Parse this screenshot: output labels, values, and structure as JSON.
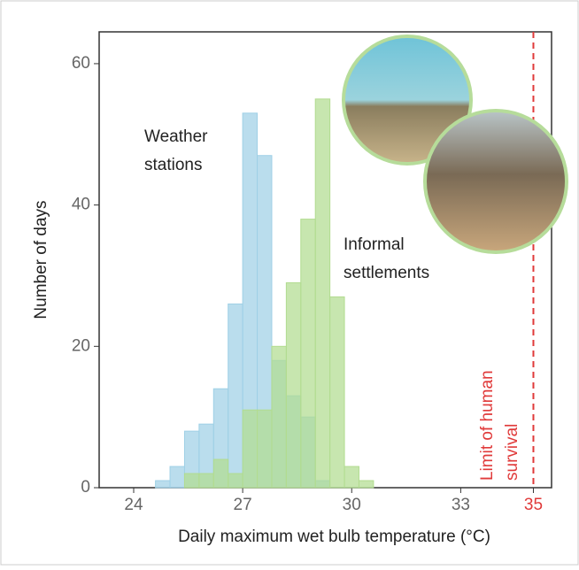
{
  "chart_data": {
    "type": "histogram",
    "xlabel": "Daily maximum wet bulb temperature (°C)",
    "ylabel": "Number of days",
    "xlim": [
      23.05,
      35.5
    ],
    "ylim": [
      0,
      64.5
    ],
    "xticks": [
      24,
      27,
      30,
      33,
      35
    ],
    "yticks": [
      0,
      20,
      40,
      60
    ],
    "series": [
      {
        "name": [
          "Weather",
          "stations"
        ],
        "color": "#9fd0e6",
        "bins": [
          24.6,
          25.0,
          25.4,
          25.8,
          26.2,
          26.6,
          27.0,
          27.4,
          27.8,
          28.2,
          28.6,
          29.0,
          29.4
        ],
        "values": [
          1,
          3,
          8,
          9,
          14,
          26,
          53,
          47,
          18,
          13,
          10,
          1
        ]
      },
      {
        "name": [
          "Informal",
          "settlements"
        ],
        "color": "#b2dc90",
        "bins": [
          25.4,
          25.8,
          26.2,
          26.6,
          27.0,
          27.4,
          27.8,
          28.2,
          28.6,
          29.0,
          29.4,
          29.8,
          30.2,
          30.6
        ],
        "values": [
          2,
          2,
          4,
          2,
          11,
          11,
          20,
          29,
          38,
          55,
          27,
          3,
          1
        ]
      }
    ],
    "vline": {
      "value": 35,
      "color": "#e03a3a",
      "label": [
        "Limit of human",
        "survival"
      ]
    }
  }
}
